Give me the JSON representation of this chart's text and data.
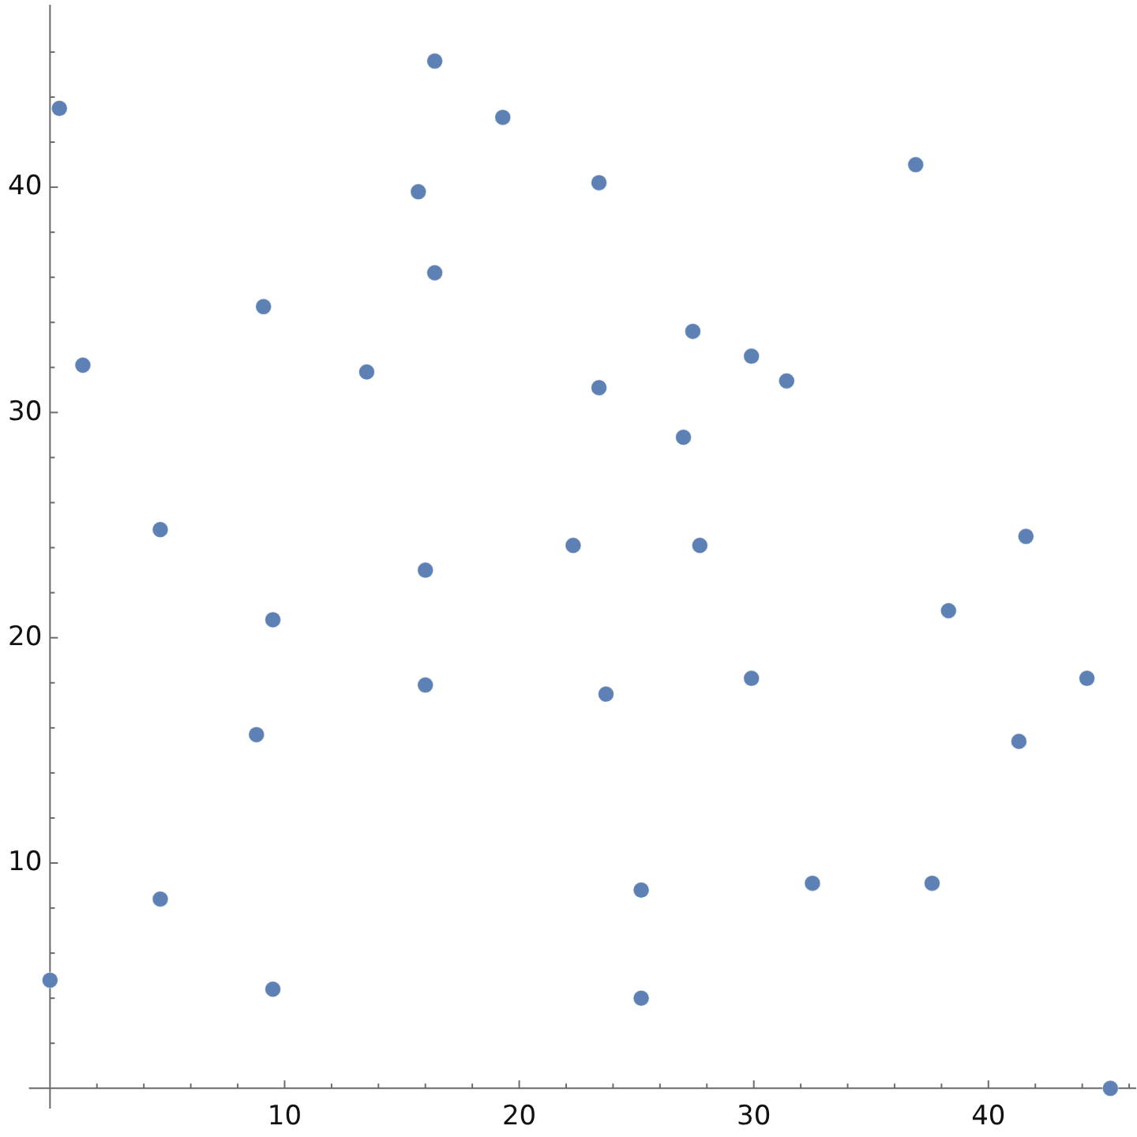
{
  "chart_data": {
    "type": "scatter",
    "color": "#5e81b5",
    "marker": "circle",
    "x": [
      0.4,
      16.4,
      19.3,
      15.7,
      16.4,
      9.1,
      1.4,
      13.5,
      4.7,
      22.3,
      16.0,
      23.4,
      36.9,
      27.4,
      29.9,
      31.4,
      23.4,
      27.0,
      27.7,
      41.6,
      9.5,
      16.0,
      8.8,
      4.7,
      0.0,
      9.5,
      38.3,
      23.7,
      29.9,
      44.2,
      41.3,
      25.2,
      32.5,
      37.6,
      25.2,
      45.2
    ],
    "values": [
      43.5,
      45.6,
      43.1,
      39.8,
      36.2,
      34.7,
      32.1,
      31.8,
      24.8,
      24.1,
      23.0,
      40.2,
      41.0,
      33.6,
      32.5,
      31.4,
      31.1,
      28.9,
      24.1,
      24.5,
      20.8,
      17.9,
      15.7,
      8.4,
      4.8,
      4.4,
      21.2,
      17.5,
      18.2,
      18.2,
      15.4,
      8.8,
      9.1,
      9.1,
      4.0,
      0.0
    ],
    "xlim": [
      -0.9,
      46.3
    ],
    "ylim": [
      -0.9,
      48.1
    ],
    "xticks": [
      {
        "value": 2,
        "label": null
      },
      {
        "value": 4,
        "label": null
      },
      {
        "value": 6,
        "label": null
      },
      {
        "value": 8,
        "label": null
      },
      10,
      {
        "value": 12,
        "label": null
      },
      {
        "value": 14,
        "label": null
      },
      {
        "value": 16,
        "label": null
      },
      {
        "value": 18,
        "label": null
      },
      20,
      {
        "value": 22,
        "label": null
      },
      {
        "value": 24,
        "label": null
      },
      {
        "value": 26,
        "label": null
      },
      {
        "value": 28,
        "label": null
      },
      30,
      {
        "value": 32,
        "label": null
      },
      {
        "value": 34,
        "label": null
      },
      {
        "value": 36,
        "label": null
      },
      {
        "value": 38,
        "label": null
      },
      40,
      {
        "value": 42,
        "label": null
      },
      {
        "value": 44,
        "label": null
      },
      {
        "value": 46,
        "label": null
      }
    ],
    "yticks": [
      {
        "value": 2,
        "label": null
      },
      {
        "value": 4,
        "label": null
      },
      {
        "value": 6,
        "label": null
      },
      {
        "value": 8,
        "label": null
      },
      10,
      {
        "value": 12,
        "label": null
      },
      {
        "value": 14,
        "label": null
      },
      {
        "value": 16,
        "label": null
      },
      {
        "value": 18,
        "label": null
      },
      20,
      {
        "value": 22,
        "label": null
      },
      {
        "value": 24,
        "label": null
      },
      {
        "value": 26,
        "label": null
      },
      {
        "value": 28,
        "label": null
      },
      30,
      {
        "value": 32,
        "label": null
      },
      {
        "value": 34,
        "label": null
      },
      {
        "value": 36,
        "label": null
      },
      {
        "value": 38,
        "label": null
      },
      40,
      {
        "value": 42,
        "label": null
      },
      {
        "value": 44,
        "label": null
      },
      {
        "value": 46,
        "label": null
      }
    ]
  }
}
